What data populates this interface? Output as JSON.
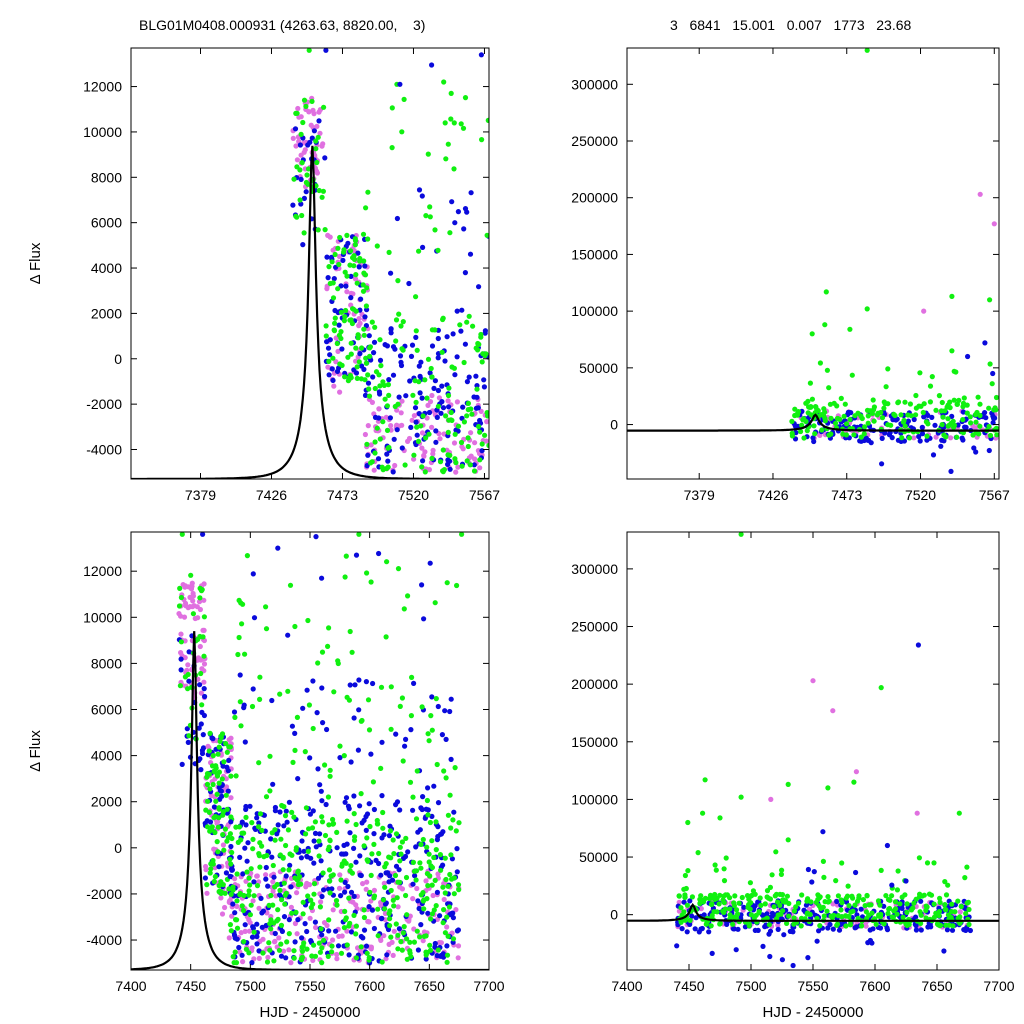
{
  "header": {
    "left": "BLG01M0408.000931 (4263.63, 8820.00,    3)",
    "right": "3   6841   15.001   0.007   1773   23.68"
  },
  "colors": {
    "series_a": "#e070e0",
    "series_b": "#0a0adc",
    "series_c": "#10f010",
    "model": "#000000"
  },
  "chart_data": [
    {
      "id": "top-left",
      "type": "scatter",
      "xlim": [
        7333,
        7570
      ],
      "ylim": [
        -5300,
        13700
      ],
      "xticks": [
        7379,
        7426,
        7473,
        7520,
        7567
      ],
      "yticks": [
        -4000,
        -2000,
        0,
        2000,
        4000,
        6000,
        8000,
        10000,
        12000
      ],
      "xlabel": "",
      "ylabel": "Δ Flux",
      "model": {
        "t0": 7453,
        "peak": 9400,
        "base": -5300,
        "u0": 0.123,
        "tE": 17
      },
      "clusters": [
        {
          "color": "series_a",
          "n": 50,
          "x": [
            7440,
            7460
          ],
          "y": [
            7500,
            11500
          ]
        },
        {
          "color": "series_b",
          "n": 25,
          "x": [
            7440,
            7462
          ],
          "y": [
            5000,
            10500
          ]
        },
        {
          "color": "series_c",
          "n": 35,
          "x": [
            7440,
            7462
          ],
          "y": [
            5500,
            11500
          ]
        },
        {
          "color": "series_a",
          "n": 60,
          "x": [
            7462,
            7490
          ],
          "y": [
            -1500,
            5500
          ]
        },
        {
          "color": "series_b",
          "n": 60,
          "x": [
            7462,
            7490
          ],
          "y": [
            -1000,
            5500
          ]
        },
        {
          "color": "series_c",
          "n": 80,
          "x": [
            7462,
            7490
          ],
          "y": [
            -1000,
            5500
          ]
        },
        {
          "color": "series_a",
          "n": 110,
          "x": [
            7488,
            7570
          ],
          "y": [
            -5000,
            -1500
          ]
        },
        {
          "color": "series_b",
          "n": 140,
          "x": [
            7488,
            7570
          ],
          "y": [
            -5000,
            1500
          ]
        },
        {
          "color": "series_c",
          "n": 130,
          "x": [
            7488,
            7570
          ],
          "y": [
            -5000,
            2000
          ]
        },
        {
          "color": "series_b",
          "n": 20,
          "x": [
            7500,
            7570
          ],
          "y": [
            2000,
            8000
          ]
        },
        {
          "color": "series_c",
          "n": 30,
          "x": [
            7480,
            7570
          ],
          "y": [
            2000,
            12500
          ]
        }
      ],
      "points": [
        {
          "color": "series_c",
          "x": 7451,
          "y": 13600
        },
        {
          "color": "series_b",
          "x": 7462,
          "y": 13600
        },
        {
          "color": "series_c",
          "x": 7509,
          "y": 12100
        },
        {
          "color": "series_b",
          "x": 7511,
          "y": 12100
        },
        {
          "color": "series_b",
          "x": 7532,
          "y": 12950
        },
        {
          "color": "series_c",
          "x": 7540,
          "y": 12200
        },
        {
          "color": "series_c",
          "x": 7545,
          "y": 11700
        },
        {
          "color": "series_b",
          "x": 7565,
          "y": 13400
        },
        {
          "color": "series_c",
          "x": 7541,
          "y": 10400
        },
        {
          "color": "series_c",
          "x": 7547,
          "y": 10400
        }
      ]
    },
    {
      "id": "top-right",
      "type": "scatter",
      "xlim": [
        7333,
        7570
      ],
      "ylim": [
        -48000,
        332000
      ],
      "xticks": [
        7379,
        7426,
        7473,
        7520,
        7567
      ],
      "yticks": [
        0,
        50000,
        100000,
        150000,
        200000,
        250000,
        300000
      ],
      "xlabel": "",
      "ylabel": "",
      "model": {
        "t0": 7453,
        "peak": 8500,
        "base": -5300,
        "u0": 0.123,
        "tE": 17
      },
      "clusters": [
        {
          "color": "series_a",
          "n": 60,
          "x": [
            7438,
            7570
          ],
          "y": [
            -12000,
            12000
          ]
        },
        {
          "color": "series_b",
          "n": 150,
          "x": [
            7438,
            7570
          ],
          "y": [
            -15000,
            12000
          ]
        },
        {
          "color": "series_c",
          "n": 170,
          "x": [
            7438,
            7570
          ],
          "y": [
            -12000,
            20000
          ]
        },
        {
          "color": "series_c",
          "n": 25,
          "x": [
            7440,
            7570
          ],
          "y": [
            20000,
            55000
          ]
        },
        {
          "color": "series_b",
          "n": 8,
          "x": [
            7440,
            7570
          ],
          "y": [
            -45000,
            -15000
          ]
        }
      ],
      "points": [
        {
          "color": "series_c",
          "x": 7486,
          "y": 330000
        },
        {
          "color": "series_a",
          "x": 7558,
          "y": 203000
        },
        {
          "color": "series_a",
          "x": 7567,
          "y": 177000
        },
        {
          "color": "series_c",
          "x": 7460,
          "y": 117000
        },
        {
          "color": "series_c",
          "x": 7540,
          "y": 113000
        },
        {
          "color": "series_c",
          "x": 7486,
          "y": 102000
        },
        {
          "color": "series_a",
          "x": 7522,
          "y": 100000
        },
        {
          "color": "series_c",
          "x": 7564,
          "y": 110000
        },
        {
          "color": "series_c",
          "x": 7459,
          "y": 88000
        },
        {
          "color": "series_c",
          "x": 7475,
          "y": 84000
        },
        {
          "color": "series_c",
          "x": 7451,
          "y": 80000
        },
        {
          "color": "series_b",
          "x": 7561,
          "y": 72000
        },
        {
          "color": "series_c",
          "x": 7540,
          "y": 65000
        },
        {
          "color": "series_b",
          "x": 7550,
          "y": 60000
        },
        {
          "color": "series_b",
          "x": 7566,
          "y": 45000
        }
      ]
    },
    {
      "id": "bottom-left",
      "type": "scatter",
      "xlim": [
        7400,
        7700
      ],
      "ylim": [
        -5300,
        13700
      ],
      "xticks": [
        7400,
        7450,
        7500,
        7550,
        7600,
        7650,
        7700
      ],
      "yticks": [
        -4000,
        -2000,
        0,
        2000,
        4000,
        6000,
        8000,
        10000,
        12000
      ],
      "xlabel": "HJD - 2450000",
      "ylabel": "Δ Flux",
      "model": {
        "t0": 7453,
        "peak": 9400,
        "base": -5300,
        "u0": 0.123,
        "tE": 17
      },
      "clusters": [
        {
          "color": "series_a",
          "n": 70,
          "x": [
            7440,
            7462
          ],
          "y": [
            6500,
            11500
          ]
        },
        {
          "color": "series_b",
          "n": 30,
          "x": [
            7440,
            7462
          ],
          "y": [
            3000,
            10000
          ]
        },
        {
          "color": "series_c",
          "n": 30,
          "x": [
            7440,
            7462
          ],
          "y": [
            4000,
            12000
          ]
        },
        {
          "color": "series_a",
          "n": 80,
          "x": [
            7462,
            7485
          ],
          "y": [
            -3000,
            5000
          ]
        },
        {
          "color": "series_b",
          "n": 60,
          "x": [
            7462,
            7485
          ],
          "y": [
            -2000,
            5000
          ]
        },
        {
          "color": "series_c",
          "n": 80,
          "x": [
            7462,
            7485
          ],
          "y": [
            -2000,
            5000
          ]
        },
        {
          "color": "series_a",
          "n": 250,
          "x": [
            7482,
            7675
          ],
          "y": [
            -5000,
            -1000
          ]
        },
        {
          "color": "series_b",
          "n": 320,
          "x": [
            7482,
            7675
          ],
          "y": [
            -5000,
            2000
          ]
        },
        {
          "color": "series_c",
          "n": 340,
          "x": [
            7482,
            7675
          ],
          "y": [
            -5000,
            1500
          ]
        },
        {
          "color": "series_b",
          "n": 60,
          "x": [
            7485,
            7675
          ],
          "y": [
            1500,
            7500
          ]
        },
        {
          "color": "series_c",
          "n": 70,
          "x": [
            7485,
            7675
          ],
          "y": [
            1500,
            8500
          ]
        },
        {
          "color": "series_c",
          "n": 25,
          "x": [
            7485,
            7675
          ],
          "y": [
            8500,
            12800
          ]
        },
        {
          "color": "series_b",
          "n": 8,
          "x": [
            7500,
            7675
          ],
          "y": [
            8500,
            12800
          ]
        }
      ],
      "points": [
        {
          "color": "series_c",
          "x": 7443,
          "y": 13600
        },
        {
          "color": "series_b",
          "x": 7460,
          "y": 13600
        },
        {
          "color": "series_b",
          "x": 7555,
          "y": 13500
        },
        {
          "color": "series_c",
          "x": 7591,
          "y": 13600
        },
        {
          "color": "series_c",
          "x": 7677,
          "y": 13600
        },
        {
          "color": "series_b",
          "x": 7523,
          "y": 13000
        },
        {
          "color": "series_b",
          "x": 7589,
          "y": 12700
        },
        {
          "color": "series_c",
          "x": 7665,
          "y": 11500
        }
      ]
    },
    {
      "id": "bottom-right",
      "type": "scatter",
      "xlim": [
        7400,
        7700
      ],
      "ylim": [
        -48000,
        332000
      ],
      "xticks": [
        7400,
        7450,
        7500,
        7550,
        7600,
        7650,
        7700
      ],
      "yticks": [
        0,
        50000,
        100000,
        150000,
        200000,
        250000,
        300000
      ],
      "xlabel": "HJD - 2450000",
      "ylabel": "",
      "model": {
        "t0": 7453,
        "peak": 8500,
        "base": -5300,
        "u0": 0.123,
        "tE": 17
      },
      "clusters": [
        {
          "color": "series_a",
          "n": 90,
          "x": [
            7440,
            7678
          ],
          "y": [
            -12000,
            12000
          ]
        },
        {
          "color": "series_b",
          "n": 260,
          "x": [
            7440,
            7678
          ],
          "y": [
            -15000,
            12000
          ]
        },
        {
          "color": "series_c",
          "n": 300,
          "x": [
            7440,
            7678
          ],
          "y": [
            -10000,
            18000
          ]
        },
        {
          "color": "series_c",
          "n": 35,
          "x": [
            7440,
            7678
          ],
          "y": [
            18000,
            55000
          ]
        },
        {
          "color": "series_b",
          "n": 15,
          "x": [
            7440,
            7678
          ],
          "y": [
            -45000,
            -15000
          ]
        },
        {
          "color": "series_b",
          "n": 6,
          "x": [
            7540,
            7660
          ],
          "y": [
            25000,
            60000
          ]
        }
      ],
      "points": [
        {
          "color": "series_c",
          "x": 7492,
          "y": 330000
        },
        {
          "color": "series_b",
          "x": 7635,
          "y": 234000
        },
        {
          "color": "series_a",
          "x": 7550,
          "y": 203000
        },
        {
          "color": "series_c",
          "x": 7605,
          "y": 197000
        },
        {
          "color": "series_a",
          "x": 7566,
          "y": 177000
        },
        {
          "color": "series_a",
          "x": 7585,
          "y": 124000
        },
        {
          "color": "series_c",
          "x": 7463,
          "y": 117000
        },
        {
          "color": "series_c",
          "x": 7530,
          "y": 113000
        },
        {
          "color": "series_c",
          "x": 7583,
          "y": 115000
        },
        {
          "color": "series_c",
          "x": 7492,
          "y": 102000
        },
        {
          "color": "series_a",
          "x": 7516,
          "y": 100000
        },
        {
          "color": "series_c",
          "x": 7562,
          "y": 110000
        },
        {
          "color": "series_c",
          "x": 7461,
          "y": 88000
        },
        {
          "color": "series_c",
          "x": 7475,
          "y": 84000
        },
        {
          "color": "series_c",
          "x": 7449,
          "y": 80000
        },
        {
          "color": "series_a",
          "x": 7634,
          "y": 88000
        },
        {
          "color": "series_c",
          "x": 7668,
          "y": 88000
        },
        {
          "color": "series_b",
          "x": 7558,
          "y": 72000
        },
        {
          "color": "series_c",
          "x": 7530,
          "y": 65000
        },
        {
          "color": "series_b",
          "x": 7610,
          "y": 60000
        }
      ]
    }
  ]
}
